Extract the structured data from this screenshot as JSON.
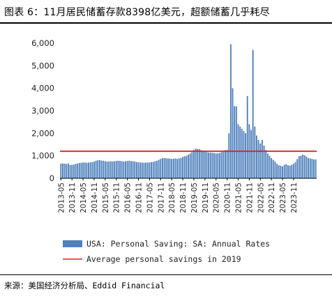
{
  "header": {
    "title": "图表 6：11月居民储蓄存款8398亿美元，超额储蓄几乎耗尽"
  },
  "footer": {
    "source": "来源：美国经济分析局、Eddid Financial"
  },
  "colors": {
    "bar": "#4f81bd",
    "avg_line": "#e0211f"
  },
  "chart_data": {
    "type": "bar",
    "start_month": "2013-05",
    "end_month": "2023-11",
    "ylim": [
      0,
      6000
    ],
    "yticks": [
      0,
      1000,
      2000,
      3000,
      4000,
      5000,
      6000
    ],
    "ytick_labels": [
      "0",
      "1,000",
      "2,000",
      "3,000",
      "4,000",
      "5,000",
      "6,000"
    ],
    "xtick_labels": [
      "2013-05",
      "2013-11",
      "2014-05",
      "2014-11",
      "2015-05",
      "2015-11",
      "2016-05",
      "2016-11",
      "2017-05",
      "2017-11",
      "2018-05",
      "2018-11",
      "2019-05",
      "2019-11",
      "2020-05",
      "2020-11",
      "2021-05",
      "2021-11",
      "2022-05",
      "2022-11",
      "2023-05",
      "2023-11"
    ],
    "series": [
      {
        "name": "USA: Personal Saving: SA: Annual Rates",
        "values": [
          650,
          660,
          650,
          640,
          660,
          590,
          600,
          610,
          640,
          660,
          680,
          690,
          700,
          700,
          690,
          700,
          710,
          720,
          740,
          780,
          800,
          810,
          790,
          780,
          760,
          740,
          750,
          760,
          750,
          760,
          770,
          780,
          770,
          760,
          740,
          760,
          770,
          780,
          770,
          760,
          750,
          720,
          710,
          700,
          700,
          690,
          700,
          700,
          710,
          720,
          730,
          760,
          780,
          820,
          860,
          900,
          900,
          890,
          880,
          880,
          860,
          870,
          880,
          860,
          880,
          900,
          950,
          980,
          1000,
          1050,
          1100,
          1160,
          1260,
          1320,
          1300,
          1290,
          1250,
          1200,
          1180,
          1160,
          1140,
          1140,
          1130,
          1120,
          1100,
          1110,
          1120,
          1160,
          1200,
          1250,
          1260,
          2000,
          5950,
          4000,
          3200,
          3200,
          2400,
          2300,
          2200,
          2100,
          2000,
          3650,
          2400,
          2150,
          5700,
          2300,
          1900,
          1700,
          1550,
          1700,
          1450,
          1250,
          1100,
          1000,
          900,
          820,
          740,
          640,
          580,
          560,
          530,
          600,
          630,
          580,
          560,
          600,
          650,
          720,
          850,
          980,
          1000,
          1050,
          1020,
          960,
          900,
          880,
          860,
          840,
          839.8
        ]
      },
      {
        "name": "Average personal savings in 2019",
        "value": 1200
      }
    ]
  }
}
